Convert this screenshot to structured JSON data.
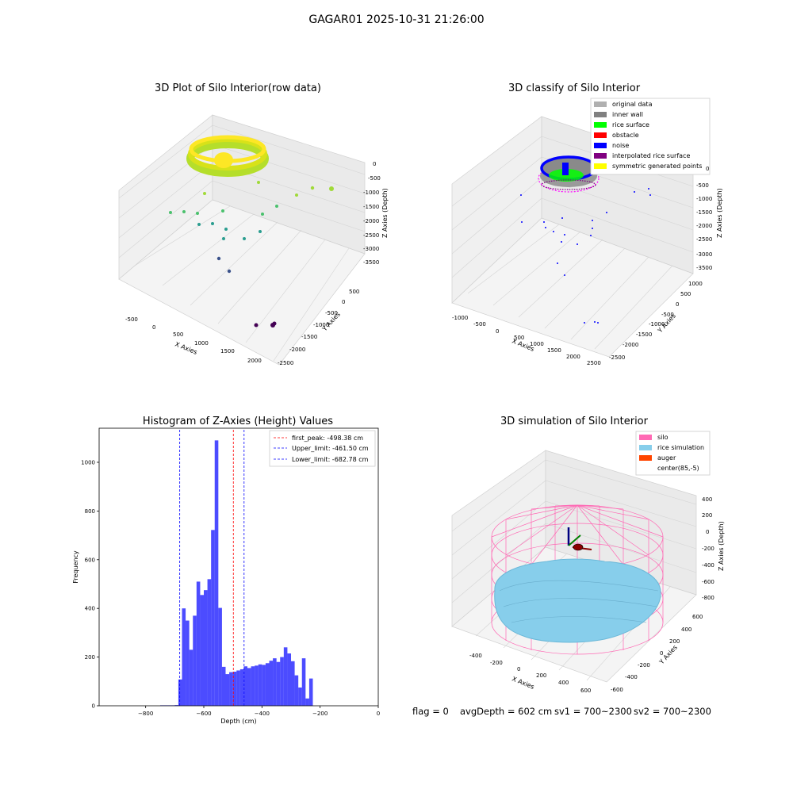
{
  "suptitle": "GAGAR01 2025-10-31 21:26:00",
  "status": {
    "flag": "flag = 0",
    "avgDepth": "avgDepth = 602 cm",
    "sv1": "sv1 = 700~2300",
    "sv2": "sv2 = 700~2300"
  },
  "chart_data": [
    {
      "type": "scatter",
      "title": "3D Plot of Silo Interior(row data)",
      "xlabel": "X Axies",
      "ylabel": "Y Axies",
      "zlabel": "Z Axies (Depth)",
      "xticks": [
        "-500",
        "0",
        "500",
        "1000",
        "1500",
        "2000"
      ],
      "yticks": [
        "500",
        "0",
        "-500",
        "-1000",
        "-1500",
        "-2000",
        "-2500"
      ],
      "zticks": [
        "0",
        "-500",
        "-1000",
        "-1500",
        "-2000",
        "-2500",
        "-3000",
        "-3500"
      ],
      "colormap": "viridis (by depth)"
    },
    {
      "type": "scatter",
      "title": "3D classify of Silo Interior",
      "xlabel": "X Axies",
      "ylabel": "Y Axies",
      "zlabel": "Z Axies (Depth)",
      "xticks": [
        "-1000",
        "-500",
        "0",
        "500",
        "1000",
        "1500",
        "2000",
        "2500"
      ],
      "yticks": [
        "1000",
        "500",
        "0",
        "-500",
        "-1000",
        "-1500",
        "-2000",
        "-2500"
      ],
      "zticks": [
        "0",
        "-500",
        "-1000",
        "-1500",
        "-2000",
        "-2500",
        "-3000",
        "-3500"
      ],
      "legend_placement": "top-right",
      "legend": [
        {
          "label": "original data",
          "color": "#b0b0b0"
        },
        {
          "label": "inner wall",
          "color": "#808080"
        },
        {
          "label": "rice surface",
          "color": "#00ff00"
        },
        {
          "label": "obstacle",
          "color": "#ff0000"
        },
        {
          "label": "noise",
          "color": "#0000ff"
        },
        {
          "label": "interpolated rice surface",
          "color": "#800080"
        },
        {
          "label": "symmetric generated points",
          "color": "#ffff00"
        }
      ]
    },
    {
      "type": "bar",
      "title": "Histogram of Z-Axies (Height) Values",
      "xlabel": "Depth (cm)",
      "ylabel": "Frequency",
      "xlim": [
        -960,
        0
      ],
      "ylim": [
        0,
        1140
      ],
      "xticks": [
        -800,
        -600,
        -400,
        -200,
        0
      ],
      "yticks": [
        0,
        200,
        400,
        600,
        800,
        1000
      ],
      "bin_width": 12.5,
      "bins": [
        {
          "start": -750,
          "value": 2
        },
        {
          "start": -737.5,
          "value": 2
        },
        {
          "start": -725,
          "value": 2
        },
        {
          "start": -712.5,
          "value": 2
        },
        {
          "start": -700,
          "value": 3
        },
        {
          "start": -687.5,
          "value": 108
        },
        {
          "start": -675,
          "value": 400
        },
        {
          "start": -662.5,
          "value": 350
        },
        {
          "start": -650,
          "value": 230
        },
        {
          "start": -637.5,
          "value": 370
        },
        {
          "start": -625,
          "value": 510
        },
        {
          "start": -612.5,
          "value": 455
        },
        {
          "start": -600,
          "value": 475
        },
        {
          "start": -587.5,
          "value": 520
        },
        {
          "start": -575,
          "value": 722
        },
        {
          "start": -562.5,
          "value": 1090
        },
        {
          "start": -550,
          "value": 402
        },
        {
          "start": -537.5,
          "value": 160
        },
        {
          "start": -525,
          "value": 130
        },
        {
          "start": -512.5,
          "value": 138
        },
        {
          "start": -500,
          "value": 140
        },
        {
          "start": -487.5,
          "value": 145
        },
        {
          "start": -475,
          "value": 150
        },
        {
          "start": -462.5,
          "value": 162
        },
        {
          "start": -450,
          "value": 155
        },
        {
          "start": -437.5,
          "value": 162
        },
        {
          "start": -425,
          "value": 165
        },
        {
          "start": -412.5,
          "value": 170
        },
        {
          "start": -400,
          "value": 168
        },
        {
          "start": -387.5,
          "value": 175
        },
        {
          "start": -375,
          "value": 185
        },
        {
          "start": -362.5,
          "value": 195
        },
        {
          "start": -350,
          "value": 180
        },
        {
          "start": -337.5,
          "value": 200
        },
        {
          "start": -325,
          "value": 240
        },
        {
          "start": -312.5,
          "value": 215
        },
        {
          "start": -300,
          "value": 183
        },
        {
          "start": -287.5,
          "value": 125
        },
        {
          "start": -275,
          "value": 75
        },
        {
          "start": -262.5,
          "value": 195
        },
        {
          "start": -250,
          "value": 30
        },
        {
          "start": -237.5,
          "value": 112
        }
      ],
      "lines": [
        {
          "label": "first_peak: -498.38 cm",
          "x": -498.38,
          "color": "#ff0000"
        },
        {
          "label": "Upper_limit: -461.50 cm",
          "x": -461.5,
          "color": "#0000ff"
        },
        {
          "label": "Lower_limit: -682.78 cm",
          "x": -682.78,
          "color": "#0000ff"
        }
      ],
      "legend_placement": "top-right"
    },
    {
      "type": "scatter",
      "title": "3D simulation of Silo Interior",
      "xlabel": "X Axies",
      "ylabel": "Y Axies",
      "zlabel": "Z Axies (Depth)",
      "xticks": [
        "-400",
        "-200",
        "0",
        "200",
        "400",
        "600"
      ],
      "yticks": [
        "600",
        "400",
        "200",
        "0",
        "-200",
        "-400",
        "-600"
      ],
      "zticks": [
        "400",
        "200",
        "0",
        "-200",
        "-400",
        "-600",
        "-800"
      ],
      "legend_placement": "top-right",
      "legend": [
        {
          "label": "silo",
          "color": "#ff69b4"
        },
        {
          "label": "rice simulation",
          "color": "#87ceeb"
        },
        {
          "label": "auger",
          "color": "#ff4500"
        },
        {
          "label": "center(85,-5)",
          "color": "#ffffff"
        }
      ]
    }
  ]
}
